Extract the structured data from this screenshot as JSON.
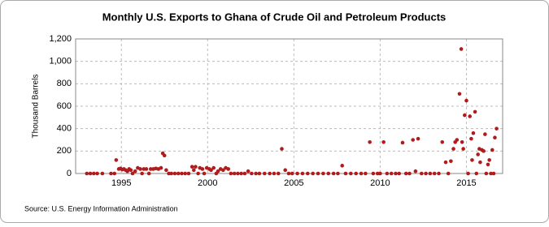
{
  "chart_data": {
    "type": "scatter",
    "title": "Monthly U.S. Exports to Ghana of Crude Oil and Petroleum Products",
    "y_label": "Thousand Barrels",
    "source": "Source: U.S. Energy Information Administration",
    "xlim": [
      1992.35,
      2017.1
    ],
    "xticks": [
      1995,
      2000,
      2005,
      2010,
      2015
    ],
    "ylim": [
      0,
      1200
    ],
    "yticks": [
      0,
      200,
      400,
      600,
      800,
      {
        "value": 1000,
        "label": "1,000"
      },
      {
        "value": 1200,
        "label": "1,200"
      }
    ],
    "grid": true,
    "series": [
      {
        "color": "#b01c1c",
        "x": [
          1993.0,
          1993.2,
          1993.4,
          1993.6,
          1993.9,
          1994.4,
          1994.6,
          1994.7,
          1994.85,
          1994.95,
          1995.05,
          1995.15,
          1995.25,
          1995.35,
          1995.45,
          1995.55,
          1995.65,
          1995.8,
          1995.95,
          1996.1,
          1996.2,
          1996.3,
          1996.45,
          1996.6,
          1996.7,
          1996.85,
          1997.0,
          1997.15,
          1997.3,
          1997.4,
          1997.5,
          1997.6,
          1997.75,
          1997.9,
          1998.1,
          1998.3,
          1998.5,
          1998.7,
          1998.9,
          1999.1,
          1999.2,
          1999.3,
          1999.45,
          1999.55,
          1999.7,
          1999.8,
          1999.95,
          2000.1,
          2000.2,
          2000.35,
          2000.5,
          2000.6,
          2000.75,
          2000.9,
          2001.05,
          2001.2,
          2001.35,
          2001.55,
          2001.75,
          2001.95,
          2002.15,
          2002.35,
          2002.55,
          2002.8,
          2003.0,
          2003.3,
          2003.6,
          2003.85,
          2004.1,
          2004.3,
          2004.5,
          2004.7,
          2004.9,
          2005.2,
          2005.5,
          2005.8,
          2006.1,
          2006.4,
          2006.7,
          2007.0,
          2007.3,
          2007.55,
          2007.8,
          2008.0,
          2008.3,
          2008.6,
          2008.9,
          2009.15,
          2009.4,
          2009.6,
          2009.85,
          2010.0,
          2010.2,
          2010.4,
          2010.65,
          2010.9,
          2011.1,
          2011.3,
          2011.5,
          2011.7,
          2011.9,
          2012.05,
          2012.2,
          2012.4,
          2012.65,
          2012.9,
          2013.15,
          2013.4,
          2013.6,
          2013.8,
          2013.95,
          2014.1,
          2014.25,
          2014.35,
          2014.45,
          2014.6,
          2014.7,
          2014.75,
          2014.82,
          2014.9,
          2015.0,
          2015.1,
          2015.2,
          2015.28,
          2015.33,
          2015.4,
          2015.5,
          2015.58,
          2015.67,
          2015.75,
          2015.8,
          2015.9,
          2016.0,
          2016.08,
          2016.15,
          2016.25,
          2016.33,
          2016.42,
          2016.5,
          2016.58,
          2016.65,
          2016.75
        ],
        "values": [
          0,
          0,
          0,
          0,
          0,
          0,
          0,
          120,
          40,
          45,
          35,
          40,
          30,
          20,
          40,
          30,
          0,
          20,
          50,
          40,
          0,
          40,
          40,
          0,
          40,
          40,
          45,
          40,
          50,
          180,
          160,
          30,
          0,
          0,
          0,
          0,
          0,
          0,
          0,
          60,
          30,
          60,
          0,
          50,
          40,
          0,
          50,
          40,
          30,
          50,
          0,
          20,
          40,
          30,
          50,
          40,
          0,
          0,
          0,
          0,
          0,
          20,
          0,
          0,
          0,
          0,
          0,
          0,
          0,
          220,
          30,
          0,
          0,
          0,
          0,
          0,
          0,
          0,
          0,
          0,
          0,
          0,
          70,
          0,
          0,
          0,
          0,
          0,
          280,
          0,
          0,
          0,
          280,
          0,
          0,
          0,
          0,
          275,
          0,
          0,
          300,
          20,
          310,
          0,
          0,
          0,
          0,
          0,
          280,
          100,
          0,
          110,
          220,
          280,
          300,
          710,
          1110,
          280,
          220,
          520,
          650,
          0,
          510,
          310,
          120,
          360,
          550,
          0,
          170,
          220,
          100,
          210,
          200,
          350,
          0,
          80,
          120,
          0,
          210,
          0,
          320,
          400
        ]
      }
    ]
  }
}
